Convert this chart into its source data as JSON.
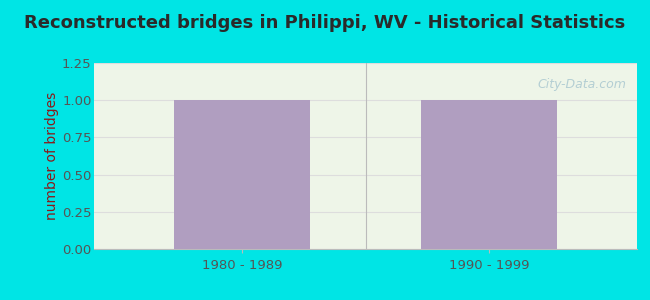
{
  "title": "Reconstructed bridges in Philippi, WV - Historical Statistics",
  "categories": [
    "1980 - 1989",
    "1990 - 1999"
  ],
  "values": [
    1,
    1
  ],
  "bar_color": "#b09ec0",
  "ylabel": "number of bridges",
  "ylim": [
    0,
    1.25
  ],
  "yticks": [
    0,
    0.25,
    0.5,
    0.75,
    1,
    1.25
  ],
  "background_outer": "#00e5e5",
  "background_plot": "#eef5e8",
  "title_color": "#2a2a2a",
  "axis_label_color": "#8b1a1a",
  "tick_label_color": "#555555",
  "watermark": "City-Data.com",
  "title_fontsize": 13,
  "ylabel_fontsize": 10,
  "tick_fontsize": 9.5,
  "watermark_color": "#aac8d0",
  "grid_color": "#dddddd",
  "separator_color": "#bbbbbb"
}
